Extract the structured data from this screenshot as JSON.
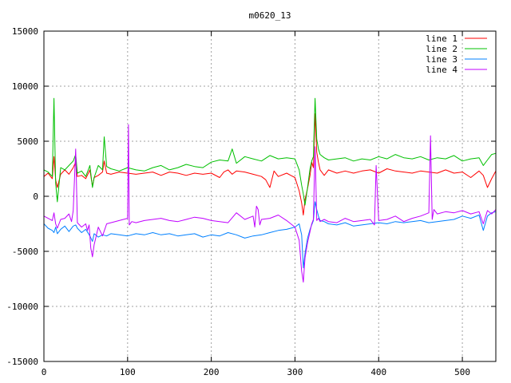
{
  "chart_data": {
    "type": "line",
    "title": "m0620_13",
    "xlabel": "",
    "ylabel": "",
    "xlim": [
      0,
      540
    ],
    "ylim": [
      -15000,
      15000
    ],
    "x_ticks": [
      0,
      100,
      200,
      300,
      400,
      500
    ],
    "y_ticks": [
      -15000,
      -10000,
      -5000,
      0,
      5000,
      10000,
      15000
    ],
    "grid": true,
    "legend_position": "top-right",
    "series": [
      {
        "name": "line 1",
        "color": "#ff0000",
        "x": [
          0,
          5,
          10,
          12,
          14,
          16,
          20,
          25,
          30,
          35,
          38,
          40,
          45,
          50,
          55,
          58,
          60,
          65,
          70,
          72,
          75,
          80,
          90,
          100,
          110,
          120,
          130,
          140,
          150,
          160,
          170,
          180,
          190,
          200,
          210,
          215,
          220,
          225,
          230,
          240,
          250,
          260,
          265,
          270,
          275,
          280,
          290,
          295,
          300,
          305,
          308,
          310,
          312,
          315,
          318,
          320,
          322,
          324,
          326,
          328,
          330,
          335,
          340,
          350,
          360,
          370,
          380,
          390,
          400,
          410,
          420,
          430,
          440,
          450,
          460,
          470,
          480,
          490,
          500,
          510,
          520,
          525,
          530,
          535,
          540
        ],
        "y": [
          1800,
          2100,
          1600,
          3600,
          1500,
          800,
          2000,
          2400,
          2000,
          2600,
          3100,
          1800,
          1900,
          1600,
          2400,
          900,
          1700,
          1900,
          2200,
          3200,
          2100,
          2000,
          2200,
          2100,
          2000,
          2100,
          2200,
          1900,
          2200,
          2100,
          1900,
          2100,
          2000,
          2100,
          1700,
          2200,
          2400,
          2000,
          2300,
          2200,
          2000,
          1800,
          1500,
          800,
          2300,
          1800,
          2100,
          1900,
          1700,
          500,
          -600,
          -1700,
          -300,
          700,
          1900,
          3100,
          2600,
          7500,
          4000,
          3100,
          2400,
          1900,
          2400,
          2100,
          2300,
          2100,
          2300,
          2400,
          2100,
          2500,
          2300,
          2200,
          2100,
          2300,
          2200,
          2100,
          2400,
          2100,
          2200,
          1700,
          2300,
          1900,
          800,
          1600,
          2300
        ]
      },
      {
        "name": "line 2",
        "color": "#00c000",
        "x": [
          0,
          5,
          10,
          12,
          14,
          16,
          20,
          25,
          30,
          35,
          38,
          40,
          45,
          50,
          55,
          58,
          60,
          65,
          70,
          72,
          75,
          80,
          90,
          100,
          110,
          120,
          130,
          140,
          150,
          160,
          170,
          180,
          190,
          200,
          210,
          220,
          225,
          230,
          240,
          250,
          260,
          270,
          280,
          290,
          300,
          305,
          308,
          310,
          312,
          315,
          318,
          320,
          322,
          324,
          326,
          328,
          330,
          335,
          340,
          350,
          360,
          370,
          380,
          390,
          400,
          410,
          420,
          430,
          440,
          450,
          460,
          470,
          480,
          490,
          500,
          510,
          520,
          525,
          530,
          535,
          540
        ],
        "y": [
          2400,
          2200,
          1800,
          8900,
          1200,
          -500,
          2600,
          2400,
          2800,
          3200,
          3800,
          2100,
          2300,
          1800,
          2800,
          800,
          1700,
          2800,
          2400,
          5400,
          2700,
          2500,
          2300,
          2600,
          2400,
          2300,
          2600,
          2800,
          2400,
          2600,
          2900,
          2700,
          2600,
          3100,
          3300,
          3200,
          4300,
          3000,
          3600,
          3400,
          3200,
          3700,
          3400,
          3500,
          3400,
          2400,
          1000,
          200,
          -800,
          800,
          2500,
          3200,
          3600,
          8900,
          5200,
          4300,
          3800,
          3500,
          3300,
          3400,
          3500,
          3200,
          3400,
          3300,
          3600,
          3400,
          3800,
          3500,
          3400,
          3600,
          3300,
          3500,
          3400,
          3700,
          3200,
          3400,
          3500,
          2800,
          3300,
          3800,
          3900
        ]
      },
      {
        "name": "line 3",
        "color": "#0080ff",
        "x": [
          0,
          5,
          10,
          12,
          14,
          16,
          20,
          25,
          30,
          35,
          38,
          40,
          45,
          50,
          55,
          58,
          60,
          65,
          70,
          75,
          80,
          90,
          100,
          110,
          120,
          130,
          140,
          150,
          160,
          170,
          180,
          190,
          200,
          210,
          220,
          230,
          240,
          250,
          260,
          270,
          280,
          290,
          300,
          305,
          308,
          310,
          312,
          315,
          318,
          320,
          322,
          324,
          326,
          328,
          330,
          335,
          340,
          350,
          360,
          370,
          380,
          390,
          400,
          410,
          420,
          430,
          440,
          450,
          460,
          470,
          480,
          490,
          500,
          510,
          520,
          525,
          530,
          535,
          540
        ],
        "y": [
          -2500,
          -2900,
          -3100,
          -3300,
          -2800,
          -3400,
          -3000,
          -2700,
          -3200,
          -2700,
          -2600,
          -2900,
          -3300,
          -3000,
          -3600,
          -4100,
          -3400,
          -3700,
          -3500,
          -3600,
          -3400,
          -3500,
          -3600,
          -3400,
          -3500,
          -3300,
          -3500,
          -3400,
          -3600,
          -3500,
          -3400,
          -3700,
          -3500,
          -3600,
          -3300,
          -3500,
          -3800,
          -3600,
          -3500,
          -3300,
          -3100,
          -3000,
          -2800,
          -2500,
          -3500,
          -6500,
          -5200,
          -3800,
          -3000,
          -2600,
          -2200,
          -500,
          -1200,
          -1800,
          -2200,
          -2300,
          -2500,
          -2600,
          -2400,
          -2700,
          -2600,
          -2500,
          -2400,
          -2500,
          -2300,
          -2400,
          -2300,
          -2200,
          -2400,
          -2300,
          -2200,
          -2100,
          -1800,
          -2000,
          -1700,
          -3100,
          -1800,
          -1500,
          -1400
        ]
      },
      {
        "name": "line 4",
        "color": "#c000ff",
        "x": [
          0,
          5,
          10,
          12,
          14,
          16,
          20,
          25,
          30,
          33,
          35,
          38,
          40,
          45,
          50,
          52,
          54,
          56,
          58,
          60,
          65,
          70,
          75,
          80,
          90,
          100,
          101,
          102,
          105,
          110,
          120,
          130,
          140,
          150,
          160,
          170,
          180,
          190,
          200,
          210,
          220,
          230,
          240,
          250,
          252,
          254,
          256,
          258,
          260,
          270,
          280,
          290,
          300,
          305,
          308,
          310,
          312,
          315,
          318,
          320,
          322,
          324,
          326,
          328,
          330,
          335,
          340,
          350,
          360,
          370,
          380,
          390,
          395,
          397,
          400,
          410,
          420,
          430,
          440,
          450,
          460,
          462,
          464,
          466,
          470,
          480,
          490,
          500,
          510,
          520,
          525,
          530,
          535,
          540
        ],
        "y": [
          -1800,
          -2000,
          -2200,
          -1500,
          -2500,
          -2900,
          -2100,
          -2000,
          -1600,
          -2300,
          -1300,
          4300,
          -2400,
          -2800,
          -2500,
          -3100,
          -2600,
          -4700,
          -5500,
          -4400,
          -2800,
          -3600,
          -2500,
          -2400,
          -2200,
          -2000,
          6500,
          -2600,
          -2300,
          -2400,
          -2200,
          -2100,
          -2000,
          -2200,
          -2300,
          -2100,
          -1900,
          -2000,
          -2200,
          -2300,
          -2400,
          -1500,
          -2100,
          -1800,
          -2800,
          -900,
          -1200,
          -2600,
          -2100,
          -2000,
          -1700,
          -2200,
          -2800,
          -4000,
          -6800,
          -7800,
          -5600,
          -4200,
          -3200,
          -2500,
          -2100,
          4500,
          -2200,
          -2000,
          -2300,
          -2100,
          -2300,
          -2400,
          -2000,
          -2300,
          -2200,
          -2100,
          -2600,
          2800,
          -2200,
          -2100,
          -1800,
          -2300,
          -2000,
          -1800,
          -1500,
          5500,
          -2100,
          -1200,
          -1600,
          -1400,
          -1500,
          -1300,
          -1600,
          -1400,
          -2500,
          -1300,
          -1600,
          -1200
        ]
      }
    ]
  }
}
